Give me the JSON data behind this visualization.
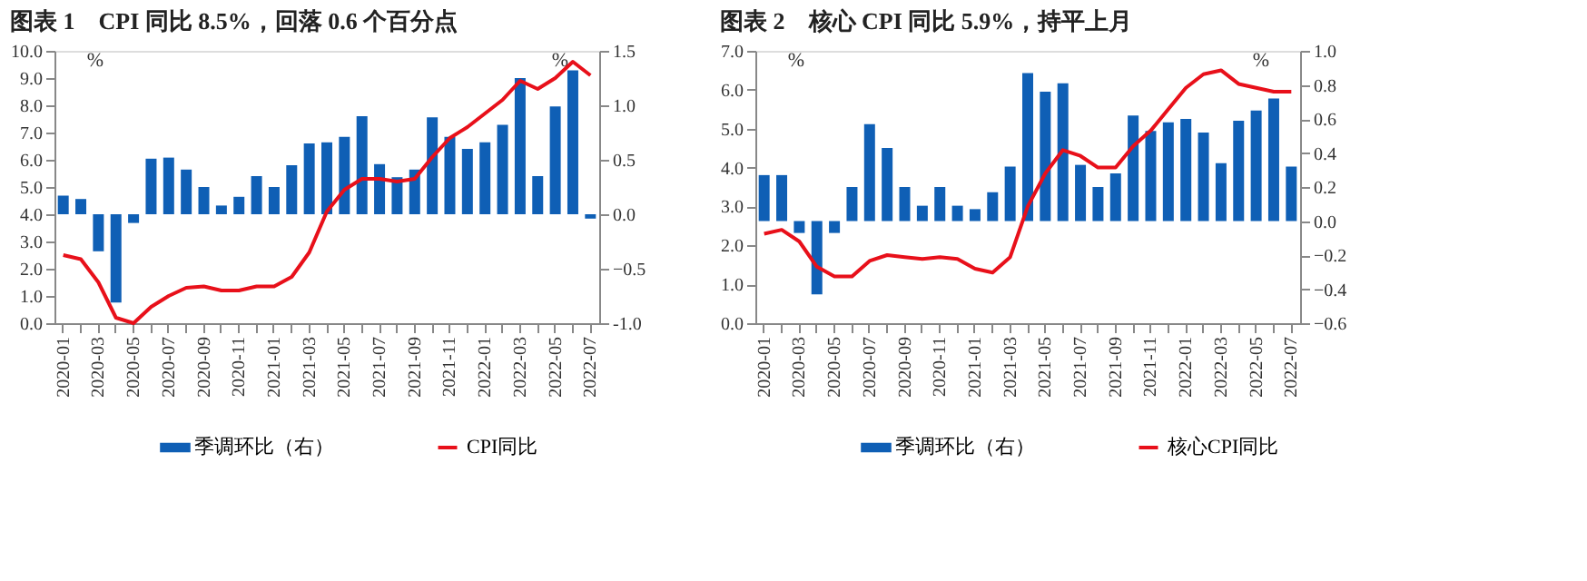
{
  "chart_data": [
    {
      "type": "bar",
      "title": "图表 1　CPI 同比 8.5%，回落 0.6 个百分点",
      "ylabel": "%",
      "y2label": "%",
      "legend": "bottom",
      "grid": false,
      "categories": [
        "2020-01",
        null,
        "2020-03",
        null,
        "2020-05",
        null,
        "2020-07",
        null,
        "2020-09",
        null,
        "2020-11",
        null,
        "2021-01",
        null,
        "2021-03",
        null,
        "2021-05",
        null,
        "2021-07",
        null,
        "2021-09",
        null,
        "2021-11",
        null,
        "2022-01",
        null,
        "2022-03",
        null,
        "2022-05",
        null,
        "2022-07"
      ],
      "ylim": [
        0,
        10
      ],
      "yticks": [
        {
          "value": 0,
          "label": "0.0"
        },
        {
          "value": 1,
          "label": "1.0"
        },
        {
          "value": 2,
          "label": "2.0"
        },
        {
          "value": 3,
          "label": "3.0"
        },
        {
          "value": 4,
          "label": "4.0"
        },
        {
          "value": 5,
          "label": "5.0"
        },
        {
          "value": 6,
          "label": "6.0"
        },
        {
          "value": 7,
          "label": "7.0"
        },
        {
          "value": 8,
          "label": "8.0"
        },
        {
          "value": 9,
          "label": "9.0"
        },
        {
          "value": 10,
          "label": "10.0"
        }
      ],
      "y2lim": [
        -1,
        1.5
      ],
      "y2ticks": [
        {
          "value": -1,
          "label": "-1.0"
        },
        -0.5,
        {
          "value": 0,
          "label": "0.0"
        },
        0.5,
        {
          "value": 1,
          "label": "1.0"
        },
        1.5
      ],
      "series": [
        {
          "name": "季调环比（右）",
          "axis": "y2",
          "color": "#0f5fb5",
          "values": [
            0.17,
            0.14,
            -0.34,
            -0.81,
            -0.08,
            0.51,
            0.52,
            0.41,
            0.25,
            0.08,
            0.16,
            0.35,
            0.25,
            0.45,
            0.65,
            0.66,
            0.71,
            0.9,
            0.46,
            0.34,
            0.41,
            0.89,
            0.71,
            0.6,
            0.66,
            0.82,
            1.25,
            0.35,
            0.99,
            1.32,
            -0.04
          ]
        },
        {
          "name": "CPI同比",
          "type": "line",
          "color": "#e8101a",
          "values": [
            2.5,
            2.35,
            1.5,
            0.2,
            0.0,
            0.6,
            1.0,
            1.3,
            1.35,
            1.2,
            1.2,
            1.35,
            1.35,
            1.7,
            2.6,
            4.1,
            4.9,
            5.3,
            5.3,
            5.2,
            5.3,
            6.1,
            6.8,
            7.2,
            7.7,
            8.2,
            8.9,
            8.6,
            9.0,
            9.6,
            9.1
          ]
        }
      ]
    },
    {
      "type": "bar",
      "title": "图表 2　核心 CPI 同比 5.9%，持平上月",
      "ylabel": "%",
      "y2label": "%",
      "legend": "bottom",
      "grid": false,
      "categories": [
        "2020-01",
        null,
        "2020-03",
        null,
        "2020-05",
        null,
        "2020-07",
        null,
        "2020-09",
        null,
        "2020-11",
        null,
        "2021-01",
        null,
        "2021-03",
        null,
        "2021-05",
        null,
        "2021-07",
        null,
        "2021-09",
        null,
        "2021-11",
        null,
        "2022-01",
        null,
        "2022-03",
        null,
        "2022-05",
        null,
        "2022-07"
      ],
      "ylim": [
        0,
        7
      ],
      "yticks": [
        {
          "value": 0,
          "label": "0.0"
        },
        {
          "value": 1,
          "label": "1.0"
        },
        {
          "value": 2,
          "label": "2.0"
        },
        {
          "value": 3,
          "label": "3.0"
        },
        {
          "value": 4,
          "label": "4.0"
        },
        {
          "value": 5,
          "label": "5.0"
        },
        {
          "value": 6,
          "label": "6.0"
        },
        {
          "value": 7,
          "label": "7.0"
        }
      ],
      "y2lim": [
        -0.6,
        1.0
      ],
      "y2ticks": [
        -0.6,
        -0.4,
        -0.2,
        {
          "value": 0,
          "label": "0.0"
        },
        0.2,
        0.4,
        0.6,
        0.8,
        {
          "value": 1,
          "label": "1.0"
        }
      ],
      "series": [
        {
          "name": "季调环比（右）",
          "axis": "y2",
          "color": "#0f5fb5",
          "values": [
            0.27,
            0.27,
            -0.07,
            -0.43,
            -0.07,
            0.2,
            0.57,
            0.43,
            0.2,
            0.09,
            0.2,
            0.09,
            0.07,
            0.17,
            0.32,
            0.87,
            0.76,
            0.81,
            0.33,
            0.2,
            0.28,
            0.62,
            0.53,
            0.58,
            0.6,
            0.52,
            0.34,
            0.59,
            0.65,
            0.72,
            0.32
          ]
        },
        {
          "name": "核心CPI同比",
          "type": "line",
          "color": "#e8101a",
          "values": [
            2.3,
            2.4,
            2.1,
            1.45,
            1.2,
            1.2,
            1.6,
            1.75,
            1.7,
            1.65,
            1.7,
            1.65,
            1.4,
            1.3,
            1.7,
            3.0,
            3.85,
            4.45,
            4.3,
            4.0,
            4.0,
            4.55,
            4.95,
            5.5,
            6.05,
            6.4,
            6.5,
            6.15,
            6.05,
            5.95,
            5.95
          ]
        }
      ]
    }
  ]
}
